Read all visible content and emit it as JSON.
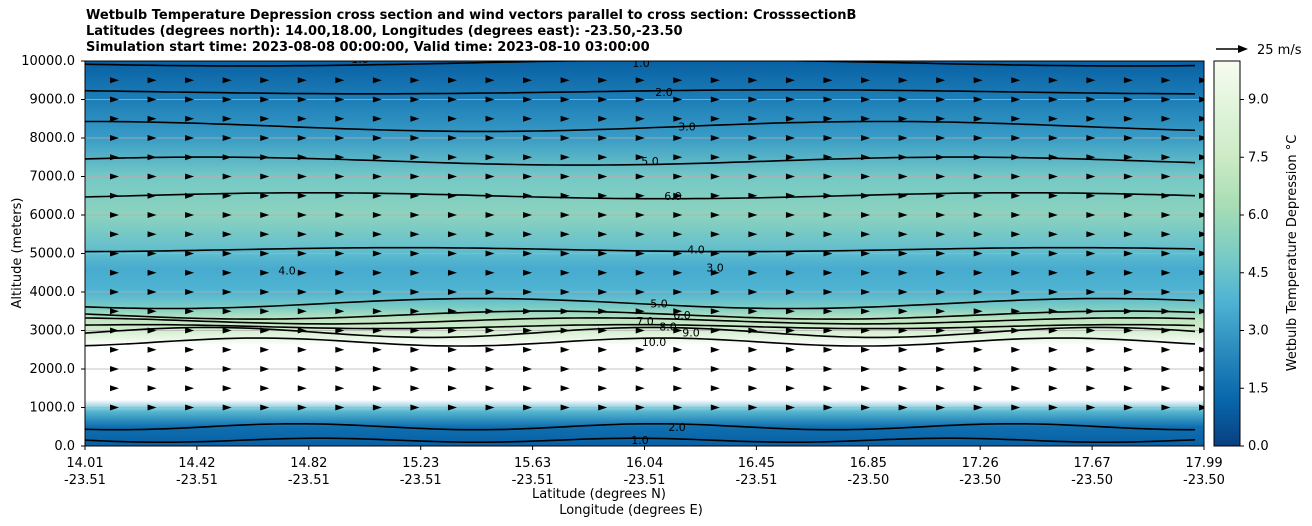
{
  "figure": {
    "title_lines": [
      "Wetbulb Temperature Depression cross section and wind vectors parallel to cross section: CrosssectionB",
      "Latitudes (degrees north): 14.00,18.00, Longitudes (degrees east): -23.50,-23.50",
      "Simulation start time: 2023-08-08 00:00:00, Valid time: 2023-08-10 03:00:00"
    ],
    "quiver_key_label": "25 m/s",
    "colorbar_label": "Wetbulb Temperature Depression °C",
    "colormap": [
      "#084081",
      "#0868ac",
      "#2b8cbe",
      "#4eb3d3",
      "#7bccc4",
      "#a8ddb5",
      "#ccebc5",
      "#e0f3db",
      "#f7fcf0"
    ]
  },
  "chart_data": {
    "type": "heatmap",
    "title": "Wetbulb Temperature Depression cross section and wind vectors parallel to cross section: CrosssectionB",
    "ylabel": "Altitude (meters)",
    "xlabel": "Latitude (degrees N)",
    "xlabel2": "Longitude (degrees E)",
    "ylim": [
      0,
      10000
    ],
    "y_ticks": [
      "0.0",
      "1000.0",
      "2000.0",
      "3000.0",
      "4000.0",
      "5000.0",
      "6000.0",
      "7000.0",
      "8000.0",
      "9000.0",
      "10000.0"
    ],
    "x_ticks": [
      {
        "lat": "14.01",
        "lon": "-23.51"
      },
      {
        "lat": "14.42",
        "lon": "-23.51"
      },
      {
        "lat": "14.82",
        "lon": "-23.51"
      },
      {
        "lat": "15.23",
        "lon": "-23.51"
      },
      {
        "lat": "15.63",
        "lon": "-23.51"
      },
      {
        "lat": "16.04",
        "lon": "-23.51"
      },
      {
        "lat": "16.45",
        "lon": "-23.51"
      },
      {
        "lat": "16.85",
        "lon": "-23.50"
      },
      {
        "lat": "17.26",
        "lon": "-23.50"
      },
      {
        "lat": "17.67",
        "lon": "-23.50"
      },
      {
        "lat": "17.99",
        "lon": "-23.50"
      }
    ],
    "colorbar_range": [
      0,
      10
    ],
    "colorbar_ticks": [
      "0.0",
      "1.5",
      "3.0",
      "4.5",
      "6.0",
      "7.5",
      "9.0"
    ],
    "layers_by_altitude": [
      {
        "alt": 0,
        "value": 1.0
      },
      {
        "alt": 500,
        "value": 1.5
      },
      {
        "alt": 900,
        "value": 4.0
      },
      {
        "alt": 1200,
        "value": 12.0
      },
      {
        "alt": 2600,
        "value": 12.0
      },
      {
        "alt": 3000,
        "value": 8.0
      },
      {
        "alt": 3300,
        "value": 7.0
      },
      {
        "alt": 3600,
        "value": 5.0
      },
      {
        "alt": 4000,
        "value": 3.8
      },
      {
        "alt": 4600,
        "value": 3.5
      },
      {
        "alt": 5000,
        "value": 4.2
      },
      {
        "alt": 6000,
        "value": 5.5
      },
      {
        "alt": 7000,
        "value": 4.8
      },
      {
        "alt": 8000,
        "value": 3.0
      },
      {
        "alt": 9000,
        "value": 2.0
      },
      {
        "alt": 10000,
        "value": 1.0
      }
    ],
    "contours": [
      {
        "level": "1.0",
        "alt": 150
      },
      {
        "level": "2.0",
        "alt": 500
      },
      {
        "level": "10.0",
        "alt": 2700
      },
      {
        "level": "9.0",
        "alt": 2950
      },
      {
        "level": "8.0",
        "alt": 3100
      },
      {
        "level": "7.0",
        "alt": 3250
      },
      {
        "level": "6.0",
        "alt": 3400
      },
      {
        "level": "5.0",
        "alt": 3700
      },
      {
        "level": "4.0",
        "alt": 5100
      },
      {
        "level": "6.0",
        "alt": 6500
      },
      {
        "level": "5.0",
        "alt": 7400
      },
      {
        "level": "3.0",
        "alt": 8300
      },
      {
        "level": "2.0",
        "alt": 9200
      },
      {
        "level": "1.0",
        "alt": 9950
      }
    ],
    "extra_labels": [
      "3.0",
      "4.0",
      "1.0"
    ],
    "wind_vector_rows_alt": [
      1000,
      1500,
      2000,
      2500,
      3000,
      3500,
      4000,
      4500,
      5000,
      5500,
      6000,
      6500,
      7000,
      7500,
      8000,
      8500,
      9000,
      9500
    ],
    "wind_vector_columns": 30
  }
}
